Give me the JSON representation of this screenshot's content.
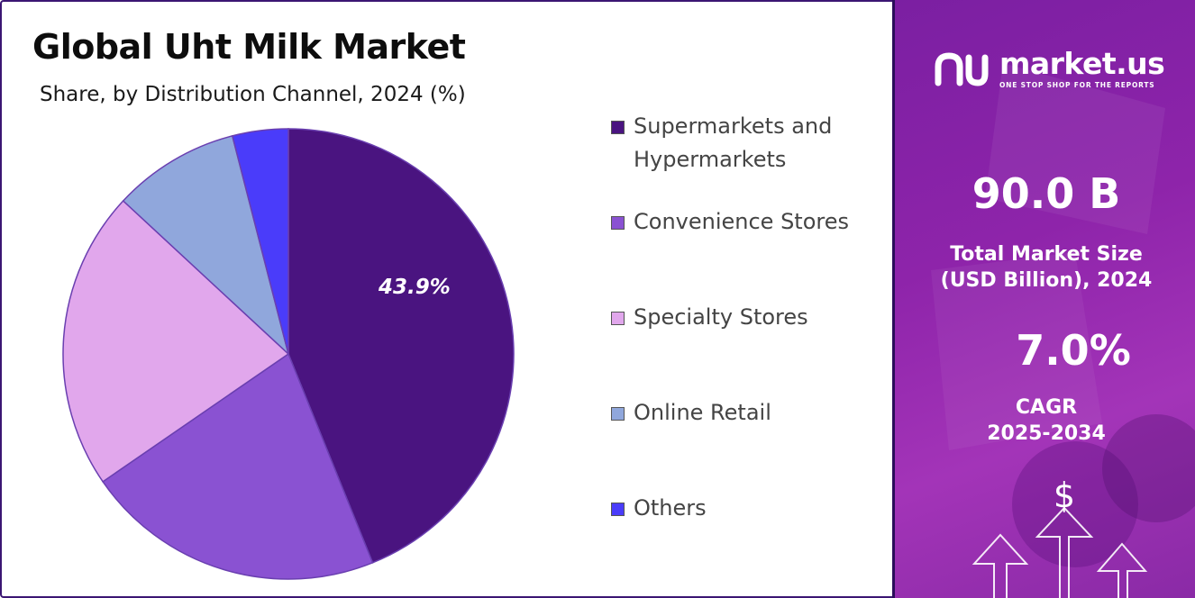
{
  "header": {
    "title": "Global Uht Milk Market",
    "subtitle": "Share, by Distribution Channel, 2024 (%)"
  },
  "chart_data": {
    "type": "pie",
    "title": "Global Uht Milk Market",
    "subtitle": "Share, by Distribution Channel, 2024 (%)",
    "categories": [
      "Supermarkets and Hypermarkets",
      "Convenience Stores",
      "Specialty Stores",
      "Online Retail",
      "Others"
    ],
    "values": [
      43.9,
      21.5,
      21.5,
      9.1,
      4.0
    ],
    "labels_shown": [
      "43.9%",
      "",
      "",
      "",
      ""
    ],
    "colors": [
      "#4a1480",
      "#8a52d2",
      "#e1a7ec",
      "#90a7dc",
      "#4a3cfa"
    ],
    "legend_position": "right"
  },
  "legend": {
    "items": [
      {
        "line1": "Supermarkets and",
        "line2": "Hypermarkets"
      },
      {
        "line1": "Convenience Stores",
        "line2": ""
      },
      {
        "line1": "Specialty Stores",
        "line2": ""
      },
      {
        "line1": "Online Retail",
        "line2": ""
      },
      {
        "line1": "Others",
        "line2": ""
      }
    ]
  },
  "sidebar": {
    "brand_name": "market.us",
    "brand_tagline": "ONE STOP SHOP FOR THE REPORTS",
    "market_size_value": "90.0 B",
    "market_size_label_1": "Total Market Size",
    "market_size_label_2": "(USD Billion), 2024",
    "cagr_value": "7.0%",
    "cagr_label_1": "CAGR",
    "cagr_label_2": "2025-2034",
    "dollar_symbol": "$",
    "logo_icon": "market-us-logo-icon",
    "decor_icon": "growth-arrows-icon"
  }
}
